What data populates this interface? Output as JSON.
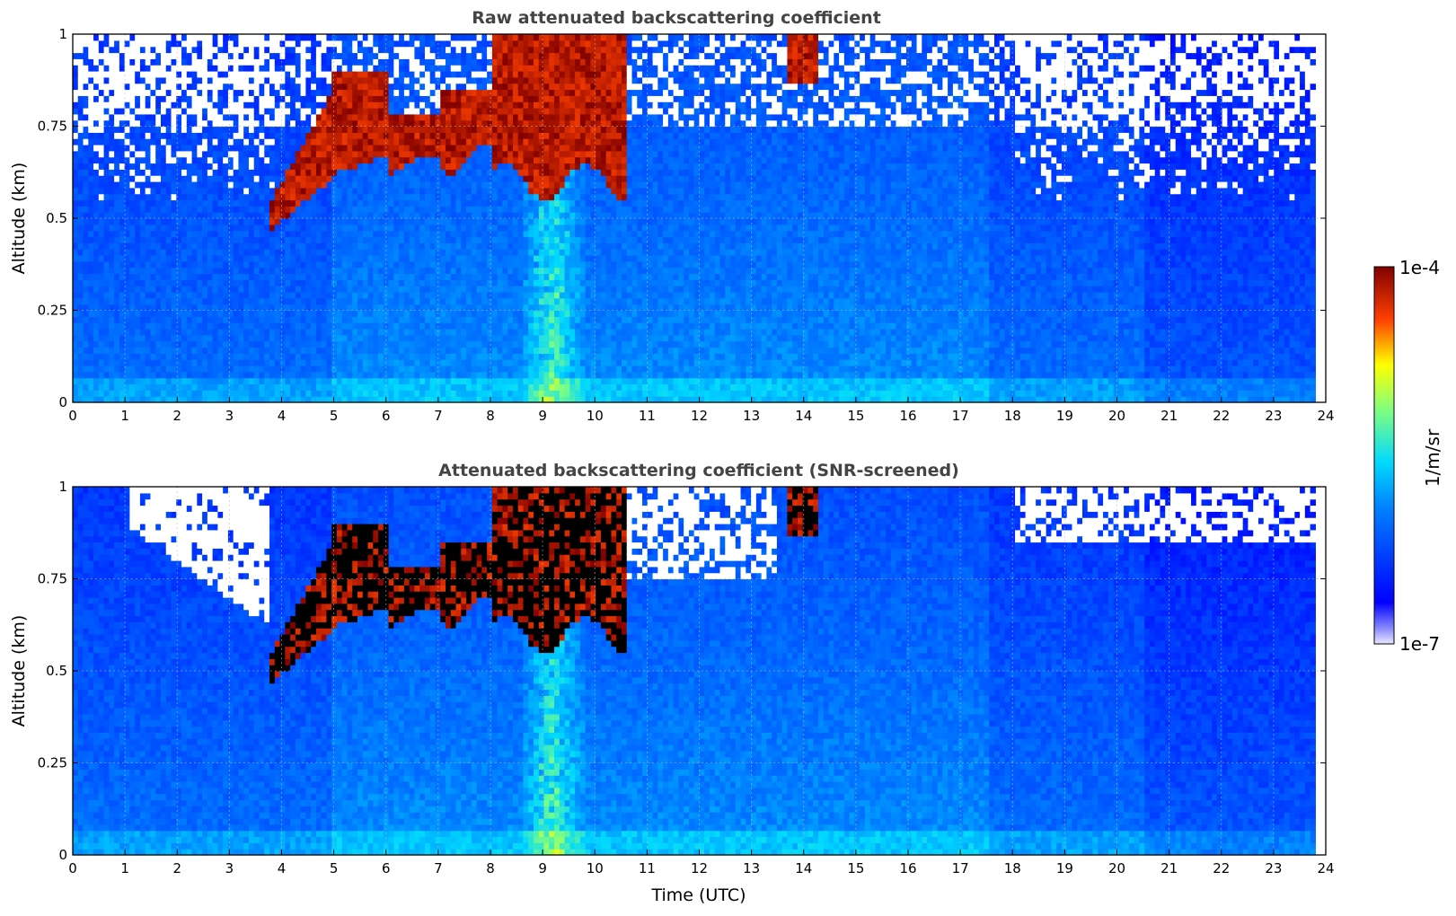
{
  "figure": {
    "colorbar": {
      "label": "1/m/sr",
      "max_label": "1e-4",
      "min_label": "1e-7"
    }
  },
  "chart_data": [
    {
      "type": "heatmap",
      "title": "Raw attenuated backscattering coefficient",
      "xlabel": "",
      "ylabel": "Altitude (km)",
      "xlim": [
        0,
        24
      ],
      "ylim": [
        0,
        1
      ],
      "x_ticks": [
        "0",
        "1",
        "2",
        "3",
        "4",
        "5",
        "6",
        "7",
        "8",
        "9",
        "10",
        "11",
        "12",
        "13",
        "14",
        "15",
        "16",
        "17",
        "18",
        "19",
        "20",
        "21",
        "22",
        "23",
        "24"
      ],
      "y_ticks": [
        "0",
        "0.25",
        "0.5",
        "0.75",
        "1"
      ],
      "data_end_x": 23.8,
      "grid": true,
      "color_scale": {
        "type": "log",
        "min": 1e-07,
        "max": 0.0001,
        "colormap": "jet",
        "units": "1/m/sr"
      },
      "snr_screened": false
    },
    {
      "type": "heatmap",
      "title": "Attenuated backscattering coefficient (SNR-screened)",
      "xlabel": "Time (UTC)",
      "ylabel": "Altitude (km)",
      "xlim": [
        0,
        24
      ],
      "ylim": [
        0,
        1
      ],
      "x_ticks": [
        "0",
        "1",
        "2",
        "3",
        "4",
        "5",
        "6",
        "7",
        "8",
        "9",
        "10",
        "11",
        "12",
        "13",
        "14",
        "15",
        "16",
        "17",
        "18",
        "19",
        "20",
        "21",
        "22",
        "23",
        "24"
      ],
      "y_ticks": [
        "0",
        "0.25",
        "0.5",
        "0.75",
        "1"
      ],
      "data_end_x": 23.8,
      "grid": true,
      "color_scale": {
        "type": "log",
        "min": 1e-07,
        "max": 0.0001,
        "colormap": "jet",
        "units": "1/m/sr"
      },
      "snr_screened": true
    }
  ]
}
